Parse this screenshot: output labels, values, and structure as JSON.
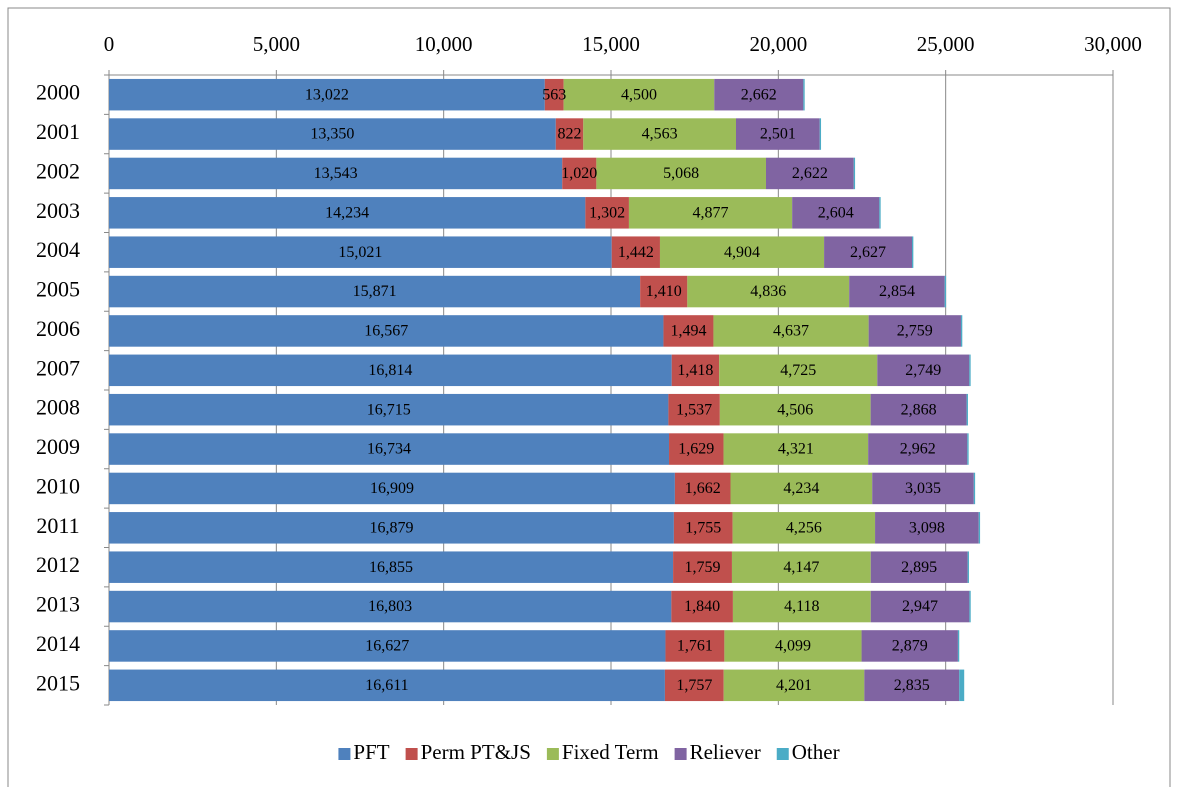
{
  "chart_data": {
    "type": "stacked-bar",
    "orientation": "horizontal",
    "categories": [
      "2000",
      "2001",
      "2002",
      "2003",
      "2004",
      "2005",
      "2006",
      "2007",
      "2008",
      "2009",
      "2010",
      "2011",
      "2012",
      "2013",
      "2014",
      "2015"
    ],
    "xlim": [
      0,
      30000
    ],
    "xticks": [
      0,
      {
        "value": 5000,
        "label": "5,000"
      },
      {
        "value": 10000,
        "label": "10,000"
      },
      {
        "value": 15000,
        "label": "15,000"
      },
      {
        "value": 20000,
        "label": "20,000"
      },
      {
        "value": 25000,
        "label": "25,000"
      },
      {
        "value": 30000,
        "label": "30,000"
      }
    ],
    "grid": true,
    "legend": "bottom",
    "series": [
      {
        "name": "PFT",
        "color": "#4f81bd",
        "values": [
          13022,
          13350,
          13543,
          14234,
          15021,
          15871,
          16567,
          16814,
          16715,
          16734,
          16909,
          16879,
          16855,
          16803,
          16627,
          16611
        ],
        "value_labels": [
          "13,022",
          "13,350",
          "13,543",
          "14,234",
          "15,021",
          "15,871",
          "16,567",
          "16,814",
          "16,715",
          "16,734",
          "16,909",
          "16,879",
          "16,855",
          "16,803",
          "16,627",
          "16,611"
        ]
      },
      {
        "name": "Perm PT&JS",
        "color": "#c0504d",
        "values": [
          563,
          822,
          1020,
          1302,
          1442,
          1410,
          1494,
          1418,
          1537,
          1629,
          1662,
          1755,
          1759,
          1840,
          1761,
          1757
        ],
        "value_labels": [
          "563",
          "822",
          "1,020",
          "1,302",
          "1,442",
          "1,410",
          "1,494",
          "1,418",
          "1,537",
          "1,629",
          "1,662",
          "1,755",
          "1,759",
          "1,840",
          "1,761",
          "1,757"
        ]
      },
      {
        "name": "Fixed Term",
        "color": "#9bbb59",
        "values": [
          4500,
          4563,
          5068,
          4877,
          4904,
          4836,
          4637,
          4725,
          4506,
          4321,
          4234,
          4256,
          4147,
          4118,
          4099,
          4201
        ],
        "value_labels": [
          "4,500",
          "4,563",
          "5,068",
          "4,877",
          "4,904",
          "4,836",
          "4,637",
          "4,725",
          "4,506",
          "4,321",
          "4,234",
          "4,256",
          "4,147",
          "4,118",
          "4,099",
          "4,201"
        ]
      },
      {
        "name": "Reliever",
        "color": "#8064a2",
        "values": [
          2662,
          2501,
          2622,
          2604,
          2627,
          2854,
          2759,
          2749,
          2868,
          2962,
          3035,
          3098,
          2895,
          2947,
          2879,
          2835
        ],
        "value_labels": [
          "2,662",
          "2,501",
          "2,622",
          "2,604",
          "2,627",
          "2,854",
          "2,759",
          "2,749",
          "2,868",
          "2,962",
          "3,035",
          "3,098",
          "2,895",
          "2,947",
          "2,879",
          "2,835"
        ]
      },
      {
        "name": "Other",
        "color": "#4bacc6",
        "values": [
          40,
          40,
          40,
          40,
          40,
          40,
          40,
          40,
          40,
          40,
          40,
          40,
          40,
          40,
          40,
          150
        ]
      }
    ]
  }
}
